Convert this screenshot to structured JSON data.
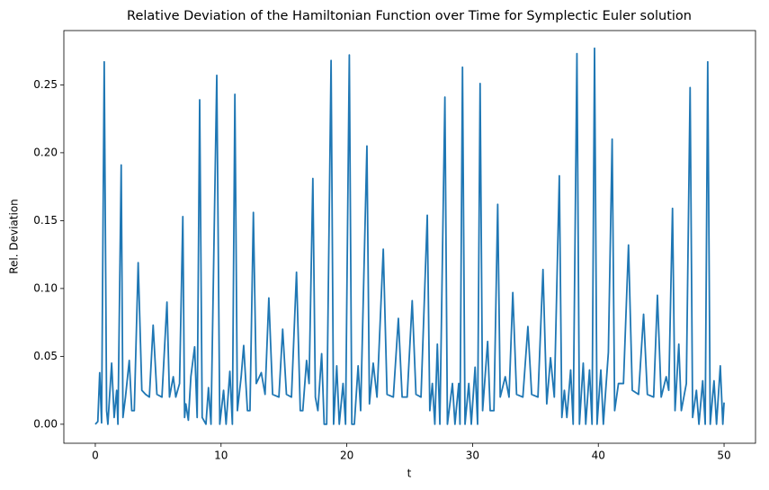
{
  "chart_data": {
    "type": "line",
    "title": "Relative Deviation of the Hamiltonian Function over Time for Symplectic Euler solution",
    "x_label": "t",
    "y_label": "Rel. Deviation",
    "xlim": [
      -2.5,
      52.5
    ],
    "ylim": [
      -0.014,
      0.29
    ],
    "xticks": [
      0,
      10,
      20,
      30,
      40,
      50
    ],
    "yticks": [
      {
        "value": 0,
        "label": "0.00"
      },
      0.05,
      {
        "value": 0.1,
        "label": "0.10"
      },
      0.15,
      {
        "value": 0.2,
        "label": "0.20"
      },
      0.25
    ],
    "grid": false,
    "series": [
      {
        "color": "#1f77b4",
        "x": [
          0,
          0.2,
          0.35,
          0.5,
          0.71,
          0.9,
          1.0,
          1.3,
          1.5,
          1.7,
          1.8,
          2.06,
          2.2,
          2.4,
          2.7,
          2.9,
          3.1,
          3.41,
          3.7,
          4.0,
          4.3,
          4.6,
          4.9,
          5.3,
          5.7,
          5.9,
          6.2,
          6.4,
          6.7,
          6.96,
          7.1,
          7.2,
          7.4,
          7.6,
          7.9,
          8.1,
          8.3,
          8.5,
          8.8,
          9.0,
          9.2,
          9.66,
          9.9,
          10.2,
          10.4,
          10.7,
          10.9,
          11.1,
          11.3,
          11.6,
          11.8,
          12.1,
          12.3,
          12.57,
          12.8,
          13.2,
          13.5,
          13.8,
          14.1,
          14.6,
          14.9,
          15.2,
          15.6,
          16.0,
          16.3,
          16.5,
          16.8,
          17.0,
          17.3,
          17.5,
          17.7,
          18.0,
          18.2,
          18.4,
          18.75,
          18.95,
          19.2,
          19.4,
          19.7,
          19.9,
          20.2,
          20.4,
          20.6,
          20.9,
          21.1,
          21.6,
          21.8,
          22.1,
          22.4,
          22.9,
          23.2,
          23.7,
          24.1,
          24.4,
          24.8,
          25.2,
          25.5,
          25.9,
          26.4,
          26.6,
          26.8,
          27.0,
          27.2,
          27.4,
          27.8,
          28.0,
          28.4,
          28.6,
          28.9,
          29.0,
          29.2,
          29.4,
          29.7,
          29.9,
          30.2,
          30.4,
          30.6,
          30.8,
          31.2,
          31.4,
          31.7,
          32.0,
          32.2,
          32.6,
          32.9,
          33.2,
          33.5,
          34.0,
          34.4,
          34.7,
          35.2,
          35.6,
          35.9,
          36.2,
          36.5,
          36.9,
          37.1,
          37.3,
          37.5,
          37.8,
          38.0,
          38.3,
          38.5,
          38.8,
          39.0,
          39.3,
          39.5,
          39.7,
          39.9,
          40.2,
          40.4,
          40.8,
          41.1,
          41.3,
          41.6,
          42.0,
          42.4,
          42.7,
          43.2,
          43.6,
          43.9,
          44.4,
          44.7,
          45.0,
          45.4,
          45.6,
          45.9,
          46.1,
          46.4,
          46.6,
          47.0,
          47.3,
          47.5,
          47.8,
          48.0,
          48.3,
          48.5,
          48.7,
          48.9,
          49.2,
          49.4,
          49.7,
          49.9,
          50.0
        ],
        "values": [
          0,
          0.002,
          0.038,
          0.001,
          0.267,
          0.01,
          0,
          0.045,
          0.005,
          0.025,
          0,
          0.191,
          0.005,
          0.02,
          0.047,
          0.01,
          0.01,
          0.119,
          0.025,
          0.022,
          0.02,
          0.073,
          0.022,
          0.02,
          0.09,
          0.02,
          0.035,
          0.02,
          0.03,
          0.153,
          0.005,
          0.015,
          0.003,
          0.035,
          0.057,
          0.005,
          0.239,
          0.005,
          0,
          0.027,
          0,
          0.257,
          0,
          0.025,
          0,
          0.039,
          0,
          0.243,
          0.01,
          0.035,
          0.058,
          0.01,
          0.01,
          0.156,
          0.03,
          0.038,
          0.022,
          0.093,
          0.022,
          0.02,
          0.07,
          0.022,
          0.02,
          0.112,
          0.01,
          0.01,
          0.047,
          0.03,
          0.181,
          0.02,
          0.01,
          0.052,
          0,
          0,
          0.268,
          0,
          0.043,
          0,
          0.03,
          0,
          0.272,
          0,
          0,
          0.043,
          0.01,
          0.205,
          0.015,
          0.045,
          0.02,
          0.129,
          0.022,
          0.02,
          0.078,
          0.02,
          0.02,
          0.091,
          0.022,
          0.02,
          0.154,
          0.01,
          0.03,
          0,
          0.059,
          0,
          0.241,
          0,
          0.03,
          0,
          0.03,
          0,
          0.263,
          0,
          0.03,
          0,
          0.042,
          0,
          0.251,
          0.01,
          0.061,
          0.01,
          0.01,
          0.162,
          0.02,
          0.035,
          0.02,
          0.097,
          0.022,
          0.02,
          0.072,
          0.022,
          0.02,
          0.114,
          0.015,
          0.049,
          0.02,
          0.183,
          0.005,
          0.025,
          0.005,
          0.04,
          0,
          0.273,
          0,
          0.045,
          0,
          0.04,
          0,
          0.277,
          0,
          0.04,
          0,
          0.053,
          0.21,
          0.01,
          0.03,
          0.03,
          0.132,
          0.025,
          0.022,
          0.081,
          0.022,
          0.02,
          0.095,
          0.02,
          0.035,
          0.025,
          0.159,
          0.01,
          0.059,
          0.01,
          0.03,
          0.248,
          0.005,
          0.025,
          0,
          0.032,
          0,
          0.267,
          0,
          0.032,
          0,
          0.043,
          0,
          0.016
        ]
      }
    ]
  }
}
